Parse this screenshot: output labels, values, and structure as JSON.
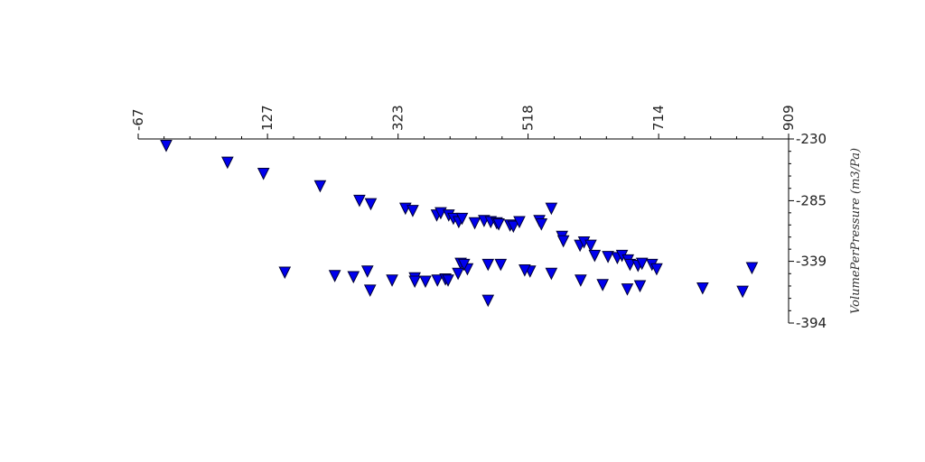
{
  "chart_data": {
    "type": "scatter",
    "ylabel": "VolumePerPressure (m3/Pa)",
    "x_axis_position": "top",
    "y_axis_position": "right",
    "x_tick_label_rotation": "vertical",
    "grid": false,
    "legend": "none",
    "marker": "triangle-down",
    "marker_color": "#0000ee",
    "marker_edge_color": "#000033",
    "xlim": [
      -67,
      909
    ],
    "ylim": [
      -394,
      -230
    ],
    "xticks": [
      -67,
      127,
      323,
      518,
      714,
      909
    ],
    "yticks": [
      -230,
      -285,
      -339,
      -394
    ],
    "x": [
      -25,
      67,
      121,
      206,
      265,
      282,
      334,
      345,
      381,
      387,
      399,
      406,
      414,
      419,
      438,
      452,
      462,
      471,
      474,
      491,
      496,
      505,
      535,
      538,
      553,
      569,
      571,
      596,
      602,
      612,
      618,
      638,
      652,
      659,
      668,
      671,
      683,
      689,
      704,
      711,
      854,
      153,
      228,
      277,
      314,
      256,
      348,
      417,
      427,
      422,
      458,
      477,
      521,
      413,
      348,
      364,
      382,
      394,
      398,
      281,
      458,
      513,
      553,
      597,
      630,
      667,
      686,
      780,
      840
    ],
    "y": [
      -236,
      -251,
      -261,
      -272,
      -285,
      -288,
      -292,
      -294,
      -298,
      -296,
      -298,
      -301,
      -304,
      -301,
      -305,
      -303,
      -304,
      -305,
      -306,
      -307,
      -308,
      -304,
      -303,
      -306,
      -292,
      -317,
      -321,
      -325,
      -322,
      -325,
      -334,
      -335,
      -336,
      -334,
      -338,
      -342,
      -343,
      -341,
      -342,
      -346,
      -345,
      -349,
      -352,
      -348,
      -356,
      -353,
      -354,
      -341,
      -346,
      -342,
      -342,
      -342,
      -348,
      -350,
      -357,
      -357,
      -356,
      -355,
      -356,
      -365,
      -374,
      -347,
      -350,
      -356,
      -360,
      -364,
      -361,
      -363,
      -366
    ]
  }
}
